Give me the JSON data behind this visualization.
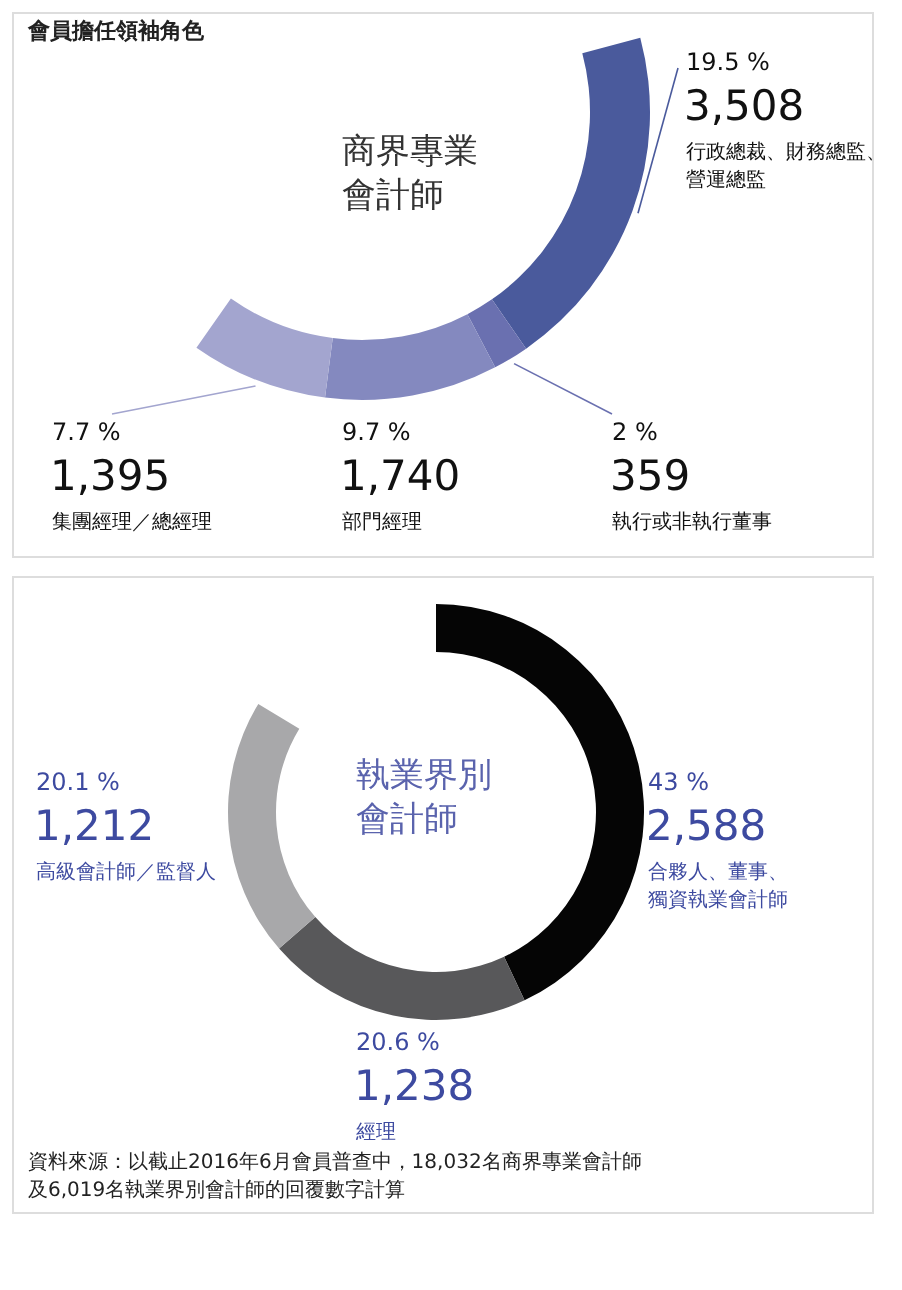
{
  "chart_data": [
    {
      "type": "donut",
      "title": "商界專業會計師",
      "annotations": [
        "會員擔任領袖角色"
      ],
      "categories": [
        "行政總裁、財務總監、營運總監",
        "執行或非執行董事",
        "部門經理",
        "集團經理／總經理"
      ],
      "values": [
        19.5,
        2,
        9.7,
        7.7
      ],
      "value_labels": [
        "19.5 %\n3,508",
        "2 %\n359",
        "9.7 %\n1,740",
        "7.7 %\n1,395"
      ],
      "colors": [
        "#4a5a9c",
        "#6a70b0",
        "#8489bf",
        "#a3a5cf"
      ]
    },
    {
      "type": "donut",
      "title": "執業界別會計師",
      "annotations": [
        "資料來源：以截止2016年6月會員普查中，18,032名商界專業會計師及6,019名執業界別會計師的回覆數字計算"
      ],
      "categories": [
        "合夥人、董事、獨資執業會計師",
        "經理",
        "高級會計師／監督人"
      ],
      "values": [
        43,
        20.6,
        20.1
      ],
      "value_labels": [
        "43 %\n2,588",
        "20.6 %\n1,238",
        "20.1 %\n1,212"
      ],
      "colors": [
        "#050505",
        "#58585a",
        "#a8a8aa"
      ]
    }
  ]
}
